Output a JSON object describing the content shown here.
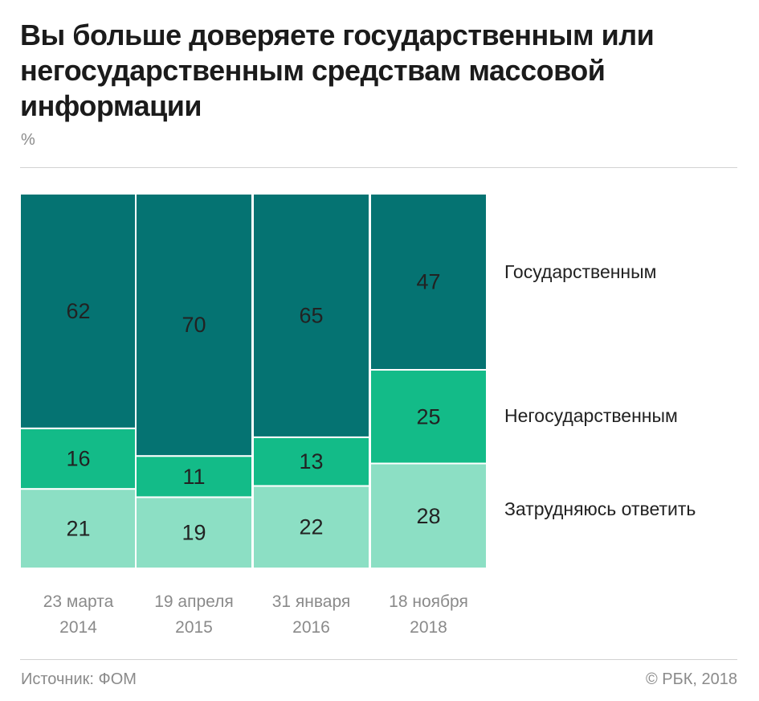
{
  "title": "Вы больше доверяете государственным или негосударственным средствам массовой информации",
  "unit": "%",
  "source": "Источник: ФОМ",
  "copyright": "© РБК, 2018",
  "colors": {
    "state": "#057372",
    "nonstate": "#13bb88",
    "undecided": "#8cdfc4"
  },
  "chart_data": {
    "type": "bar",
    "stacked": true,
    "categories": [
      "23 марта 2014",
      "19 апреля 2015",
      "31 января 2016",
      "18 ноября 2018"
    ],
    "category_lines": [
      [
        "23 марта",
        "2014"
      ],
      [
        "19 апреля",
        "2015"
      ],
      [
        "31 января",
        "2016"
      ],
      [
        "18 ноября",
        "2018"
      ]
    ],
    "series": [
      {
        "name": "Затрудняюсь ответить",
        "key": "undecided",
        "values": [
          21,
          19,
          22,
          28
        ]
      },
      {
        "name": "Негосударственным",
        "key": "nonstate",
        "values": [
          16,
          11,
          13,
          25
        ]
      },
      {
        "name": "Государственным",
        "key": "state",
        "values": [
          62,
          70,
          65,
          47
        ]
      }
    ],
    "legend": "right",
    "grid": false
  }
}
